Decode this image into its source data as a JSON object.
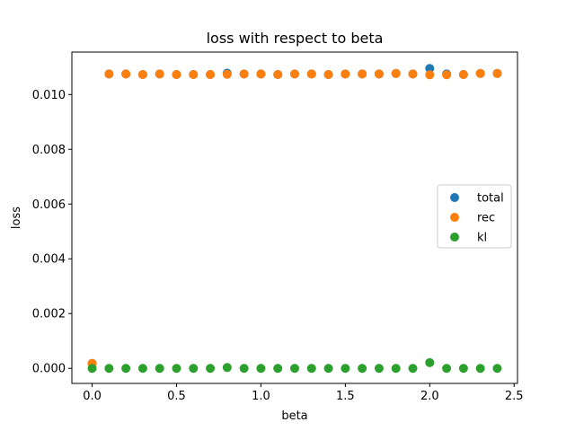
{
  "chart_data": {
    "type": "scatter",
    "title": "loss with respect to beta",
    "xlabel": "beta",
    "ylabel": "loss",
    "xlim": [
      -0.12,
      2.52
    ],
    "ylim": [
      -0.00055,
      0.01155
    ],
    "xticks": [
      0.0,
      0.5,
      1.0,
      1.5,
      2.0,
      2.5
    ],
    "xtick_labels": [
      "0.0",
      "0.5",
      "1.0",
      "1.5",
      "2.0",
      "2.5"
    ],
    "yticks": [
      0.0,
      0.002,
      0.004,
      0.006,
      0.008,
      0.01
    ],
    "ytick_labels": [
      "0.000",
      "0.002",
      "0.004",
      "0.006",
      "0.008",
      "0.010"
    ],
    "grid": false,
    "legend": "center-right",
    "x": [
      0.0,
      0.1,
      0.2,
      0.3,
      0.4,
      0.5,
      0.6,
      0.7,
      0.8,
      0.9,
      1.0,
      1.1,
      1.2,
      1.3,
      1.4,
      1.5,
      1.6,
      1.7,
      1.8,
      1.9,
      2.0,
      2.1,
      2.2,
      2.3,
      2.4
    ],
    "series": [
      {
        "name": "total",
        "color": "#1f77b4",
        "values": [
          0.00018,
          0.01075,
          0.01075,
          0.01073,
          0.01075,
          0.01073,
          0.01073,
          0.01073,
          0.01078,
          0.01075,
          0.01075,
          0.01073,
          0.01075,
          0.01075,
          0.01073,
          0.01075,
          0.01075,
          0.01075,
          0.01077,
          0.01075,
          0.01095,
          0.01075,
          0.01073,
          0.01077,
          0.01077
        ]
      },
      {
        "name": "rec",
        "color": "#ff7f0e",
        "values": [
          0.00018,
          0.01075,
          0.01075,
          0.01073,
          0.01075,
          0.01073,
          0.01073,
          0.01073,
          0.01074,
          0.01075,
          0.01075,
          0.01073,
          0.01075,
          0.01075,
          0.01073,
          0.01075,
          0.01075,
          0.01075,
          0.01077,
          0.01075,
          0.01072,
          0.01072,
          0.01073,
          0.01077,
          0.01077
        ]
      },
      {
        "name": "kl",
        "color": "#2ca02c",
        "values": [
          0.0,
          0.0,
          0.0,
          0.0,
          0.0,
          0.0,
          0.0,
          0.0,
          3e-05,
          0.0,
          0.0,
          0.0,
          0.0,
          0.0,
          0.0,
          0.0,
          0.0,
          0.0,
          0.0,
          0.0,
          0.00021,
          0.0,
          0.0,
          0.0,
          0.0
        ]
      }
    ]
  }
}
